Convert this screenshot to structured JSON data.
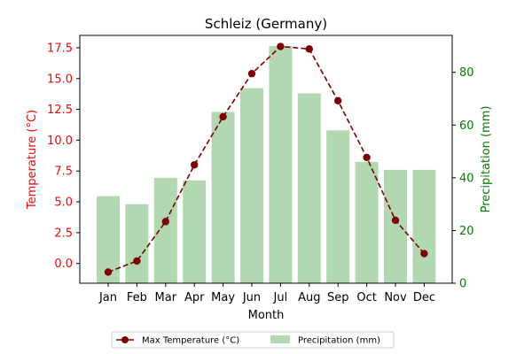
{
  "chart_data": {
    "type": "bar+line",
    "title": "Schleiz (Germany)",
    "xlabel": "Month",
    "categories": [
      "Jan",
      "Feb",
      "Mar",
      "Apr",
      "May",
      "Jun",
      "Jul",
      "Aug",
      "Sep",
      "Oct",
      "Nov",
      "Dec"
    ],
    "y_left": {
      "label": "Temperature (°C)",
      "range": [
        -1.6,
        18.5
      ],
      "ticks": [
        0.0,
        2.5,
        5.0,
        7.5,
        10.0,
        12.5,
        15.0,
        17.5
      ],
      "tick_labels": [
        "0.0",
        "2.5",
        "5.0",
        "7.5",
        "10.0",
        "12.5",
        "15.0",
        "17.5"
      ],
      "color": "#ff0000"
    },
    "y_right": {
      "label": "Precipitation (mm)",
      "range": [
        0,
        94
      ],
      "ticks": [
        0,
        20,
        40,
        60,
        80
      ],
      "tick_labels": [
        "0",
        "20",
        "40",
        "60",
        "80"
      ],
      "color": "#008000"
    },
    "series": [
      {
        "name": "Max Temperature (°C)",
        "kind": "line",
        "axis": "left",
        "color": "#800000",
        "values": [
          -0.7,
          0.2,
          3.4,
          8.0,
          11.9,
          15.4,
          17.6,
          17.4,
          13.2,
          8.6,
          3.5,
          0.8
        ]
      },
      {
        "name": "Precipitation (mm)",
        "kind": "bar",
        "axis": "right",
        "color": "#b2d8b2",
        "values": [
          33,
          30,
          40,
          39,
          65,
          74,
          90,
          72,
          58,
          46,
          43,
          43
        ]
      }
    ],
    "legend": "bottom-center",
    "grid": false
  }
}
